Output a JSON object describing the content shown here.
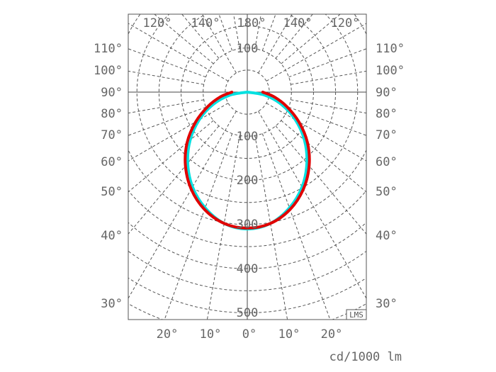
{
  "chart_data": {
    "type": "polar",
    "unit_label": "cd/1000 lm",
    "logo": "LMS",
    "radial_ticks": [
      100,
      200,
      300,
      400,
      500
    ],
    "radial_top_tick": "100",
    "radial_range": [
      0,
      550
    ],
    "grid": true,
    "angle_labels_top": [
      "120°",
      "140°",
      "180°",
      "140°",
      "120°"
    ],
    "angle_labels_bottom": [
      "20°",
      "10°",
      "0°",
      "10°",
      "20°"
    ],
    "angle_labels_side": [
      "110°",
      "100°",
      "90°",
      "80°",
      "70°",
      "60°",
      "50°",
      "40°",
      "30°"
    ],
    "angles": [
      0,
      10,
      20,
      30,
      40,
      50,
      60,
      70,
      80,
      90
    ],
    "series": [
      {
        "color": "#00e0e0",
        "values": [
          310,
          302,
          279,
          248,
          210,
          169,
          126,
          83,
          41,
          0
        ]
      },
      {
        "color": "#e00000",
        "values": [
          308,
          302,
          283,
          254,
          218,
          178,
          135,
          95,
          62,
          35
        ]
      }
    ]
  }
}
